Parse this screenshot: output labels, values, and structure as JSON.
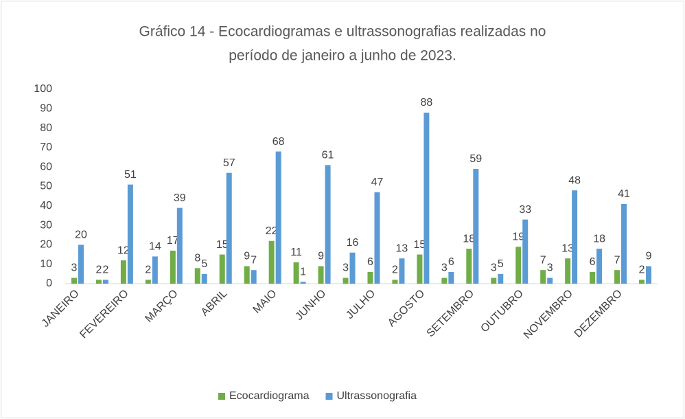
{
  "chart_data": {
    "type": "bar",
    "title": [
      "Gráfico 14 - Ecocardiogramas e ultrassonografias realizadas no",
      "período de janeiro a junho de 2023."
    ],
    "categories": [
      "JANEIRO",
      null,
      "FEVEREIRO",
      null,
      "MARÇO",
      null,
      "ABRIL",
      null,
      "MAIO",
      null,
      "JUNHO",
      null,
      "JULHO",
      null,
      "AGOSTO",
      null,
      "SETEMBRO",
      null,
      "OUTUBRO",
      null,
      "NOVEMBRO",
      null,
      "DEZEMBRO",
      null
    ],
    "series": [
      {
        "name": "Ecocardiograma",
        "color": "#70ad47",
        "values": [
          3,
          2,
          12,
          2,
          17,
          8,
          15,
          9,
          22,
          11,
          9,
          3,
          6,
          2,
          15,
          3,
          18,
          3,
          19,
          7,
          13,
          6,
          7,
          2
        ]
      },
      {
        "name": "Ultrassonografia",
        "color": "#5b9bd5",
        "values": [
          20,
          2,
          51,
          14,
          39,
          5,
          57,
          7,
          68,
          1,
          61,
          16,
          47,
          13,
          88,
          6,
          59,
          5,
          33,
          3,
          48,
          18,
          41,
          9
        ]
      }
    ],
    "ylim": [
      0,
      100
    ],
    "yticks": [
      0,
      10,
      20,
      30,
      40,
      50,
      60,
      70,
      80,
      90,
      100
    ],
    "grid": false,
    "legend": "bottom"
  }
}
